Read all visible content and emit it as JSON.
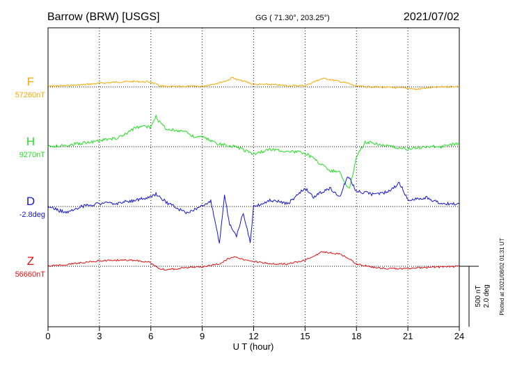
{
  "header": {
    "station": "Barrow (BRW)  [USGS]",
    "coords": "GG ( 71.30°, 203.25°)",
    "date": "2021/07/02"
  },
  "footer": {
    "xlabel": "U T (hour)",
    "scale_nt": "500 nT",
    "scale_deg": "2.0 deg",
    "plotted": "Plotted at 2021/08/02 01:31  UT"
  },
  "chart_data": {
    "type": "line",
    "xlim": [
      0,
      24
    ],
    "x_ticks": [
      "0",
      "3",
      "6",
      "9",
      "12",
      "15",
      "18",
      "21",
      "24"
    ],
    "grid": "dotted vertical lines every 3 hours",
    "scale": {
      "nT_per_bar": 500,
      "deg_per_bar": 2.0
    },
    "series": [
      {
        "name": "F",
        "baseline_label": "57260nT",
        "color": "#f5a800",
        "x": [
          0,
          1,
          2,
          3,
          4,
          5,
          6,
          6.5,
          7,
          8,
          9,
          10,
          10.5,
          10.8,
          11,
          11.5,
          12,
          13,
          14,
          15,
          15.5,
          16,
          16.5,
          17,
          17.5,
          18,
          19,
          20,
          21,
          21.5,
          22,
          23,
          24
        ],
        "y": [
          5,
          10,
          18,
          30,
          40,
          45,
          40,
          10,
          0,
          5,
          5,
          35,
          55,
          80,
          60,
          45,
          20,
          20,
          10,
          10,
          40,
          70,
          60,
          45,
          30,
          5,
          0,
          -5,
          -10,
          -20,
          -10,
          0,
          5
        ]
      },
      {
        "name": "H",
        "baseline_label": "9270nT",
        "color": "#22e022",
        "x": [
          0,
          1,
          2,
          3,
          4,
          4.5,
          5,
          5.5,
          6,
          6.3,
          6.5,
          7,
          8,
          8.5,
          9,
          10,
          11,
          11.5,
          12,
          13,
          14,
          15,
          15.5,
          16,
          16.5,
          17,
          17.3,
          17.6,
          18,
          18.5,
          19,
          20,
          21,
          22,
          23,
          24
        ],
        "y": [
          0,
          10,
          30,
          50,
          70,
          100,
          150,
          170,
          160,
          260,
          200,
          140,
          130,
          80,
          80,
          20,
          0,
          -30,
          -60,
          -20,
          -40,
          -50,
          -100,
          -150,
          -200,
          -200,
          -300,
          -350,
          -80,
          40,
          30,
          0,
          -20,
          0,
          0,
          30
        ]
      },
      {
        "name": "D",
        "baseline_label": "-2.8deg",
        "color": "#1414d0",
        "x": [
          0,
          1,
          2,
          3,
          4,
          5,
          6,
          6.3,
          7,
          8,
          9,
          9.5,
          10,
          10.3,
          10.6,
          11,
          11.4,
          11.8,
          12,
          13,
          14,
          15,
          15.5,
          16,
          16.5,
          17,
          17.5,
          18,
          19,
          20,
          20.5,
          21,
          22,
          23,
          24
        ],
        "y": [
          0,
          -0.2,
          0,
          0.1,
          0.1,
          0.2,
          0.3,
          0.4,
          0.1,
          -0.2,
          0,
          0.2,
          -1.2,
          0.4,
          -0.6,
          -1.0,
          -0.2,
          -1.2,
          0,
          0.2,
          0.1,
          0.6,
          0.3,
          0.5,
          0.6,
          0.3,
          1.0,
          0.5,
          0.4,
          0.5,
          0.8,
          0.2,
          0.3,
          0.1,
          0.1
        ]
      },
      {
        "name": "Z",
        "baseline_label": "56660nT",
        "color": "#e01010",
        "x": [
          0,
          1,
          2,
          3,
          4,
          5,
          6,
          6.5,
          7,
          8,
          9,
          10,
          10.5,
          11,
          11.5,
          12,
          13,
          14,
          15,
          15.5,
          16,
          16.5,
          17,
          17.5,
          18,
          19,
          20,
          21,
          22,
          23,
          24
        ],
        "y": [
          0,
          15,
          30,
          45,
          50,
          50,
          30,
          -20,
          -30,
          -10,
          -5,
          20,
          60,
          80,
          50,
          40,
          20,
          20,
          50,
          80,
          120,
          110,
          100,
          70,
          20,
          -10,
          -20,
          -20,
          -10,
          -5,
          0
        ]
      }
    ]
  }
}
